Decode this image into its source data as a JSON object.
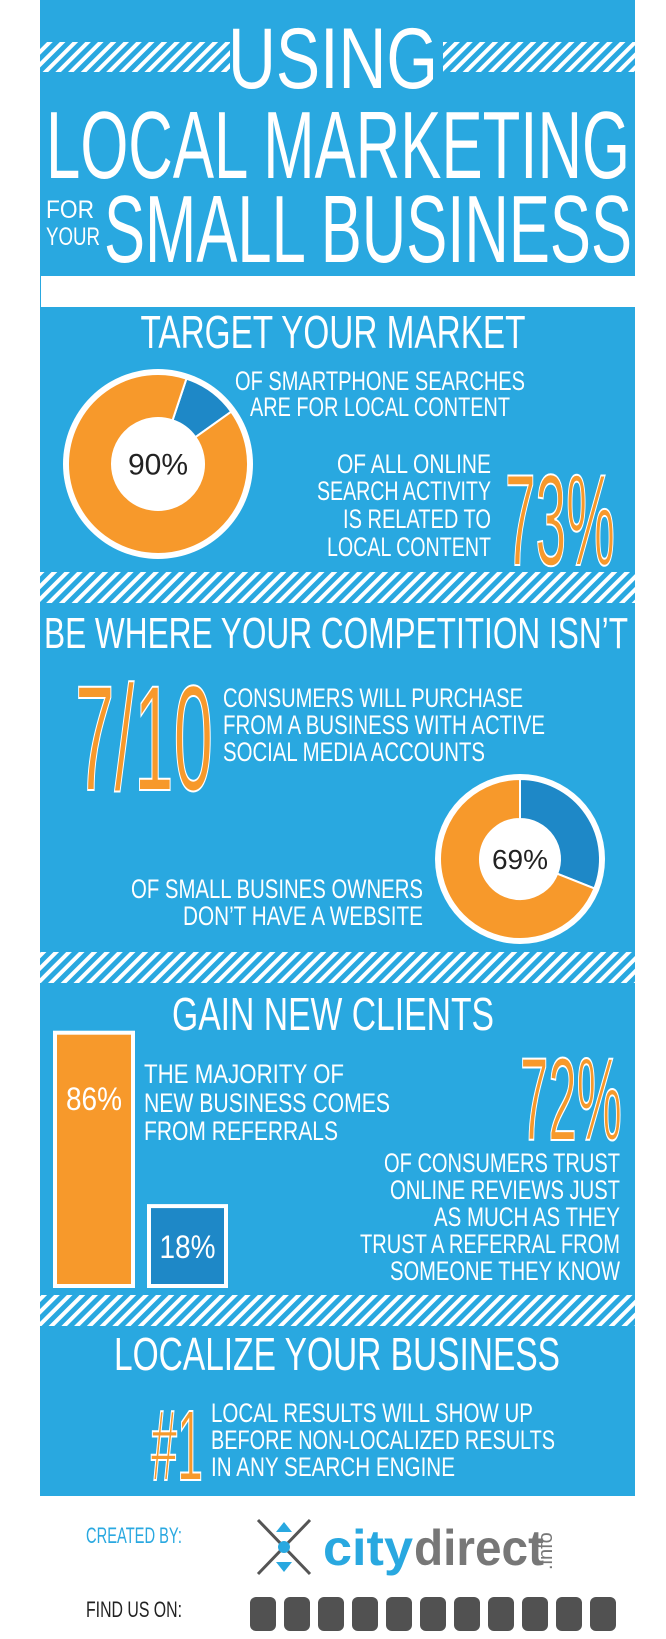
{
  "header": {
    "line1": "USING",
    "line2": "LOCAL MARKETING",
    "for": "FOR",
    "your": "YOUR",
    "line3": "SMALL BUSINESS"
  },
  "sections": [
    {
      "title": "TARGET YOUR MARKET",
      "donut": {
        "value": 90,
        "label": "90%"
      },
      "donut_text": [
        "OF SMARTPHONE SEARCHES",
        "ARE FOR LOCAL CONTENT"
      ],
      "stat": {
        "value": 73,
        "label": "73%"
      },
      "stat_text": [
        "OF ALL ONLINE",
        "SEARCH ACTIVITY",
        "IS RELATED TO",
        "LOCAL CONTENT"
      ]
    },
    {
      "title": "BE WHERE YOUR COMPETITION ISN’T",
      "stat": "7/10",
      "stat_text": [
        "CONSUMERS WILL PURCHASE",
        "FROM A BUSINESS WITH ACTIVE",
        "SOCIAL MEDIA ACCOUNTS"
      ],
      "donut": {
        "value": 69,
        "label": "69%"
      },
      "donut_text": [
        "OF SMALL BUSINES OWNERS",
        "DON’T HAVE A WEBSITE"
      ]
    },
    {
      "title": "GAIN NEW CLIENTS",
      "bars": [
        {
          "value": 86,
          "label": "86%"
        },
        {
          "value": 18,
          "label": "18%"
        }
      ],
      "bar_text": [
        "THE MAJORITY OF",
        "NEW BUSINESS COMES",
        "FROM REFERRALS"
      ],
      "stat": {
        "value": 72,
        "label": "72%"
      },
      "stat_text": [
        "OF CONSUMERS TRUST",
        "ONLINE REVIEWS JUST",
        "AS MUCH AS THEY",
        "TRUST A REFERRAL FROM",
        "SOMEONE THEY KNOW"
      ]
    },
    {
      "title": "LOCALIZE YOUR BUSINESS",
      "stat": "#1",
      "stat_text": [
        "LOCAL RESULTS WILL SHOW UP",
        "BEFORE NON-LOCALIZED RESULTS",
        "IN ANY SEARCH ENGINE"
      ]
    }
  ],
  "footer": {
    "created_by": "CREATED BY:",
    "logo": {
      "city": "city",
      "direct": "direct",
      "info": ".info"
    },
    "find_us": "FIND US ON:"
  }
}
